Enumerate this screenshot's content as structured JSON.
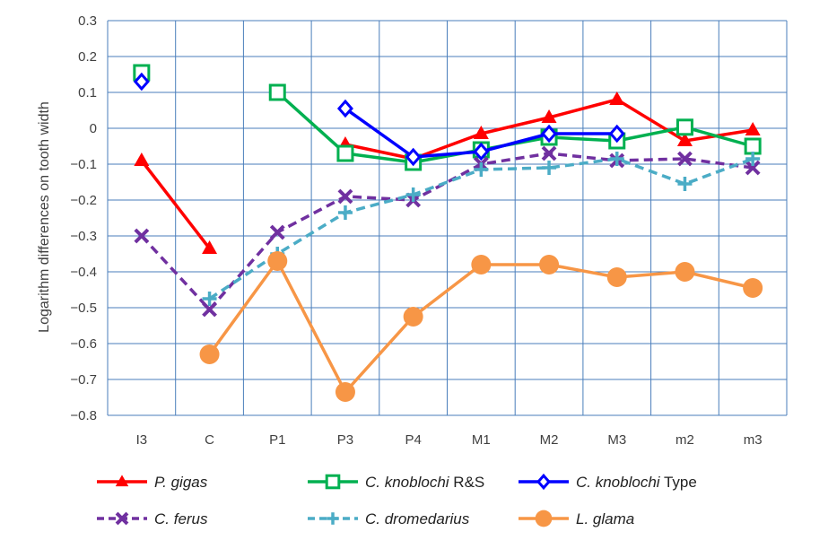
{
  "chart_data": {
    "type": "line",
    "title": "",
    "xlabel": "",
    "ylabel": "Logarithm differences on tooth width",
    "ylim": [
      -0.8,
      0.3
    ],
    "ytick_step": 0.1,
    "grid": true,
    "legend_position": "bottom",
    "categories": [
      "I3",
      "C",
      "P1",
      "P3",
      "P4",
      "M1",
      "M2",
      "M3",
      "m2",
      "m3"
    ],
    "series": [
      {
        "name_parts": [
          {
            "text": "P. gigas",
            "italic": true
          }
        ],
        "color": "#ff0000",
        "dash": "solid",
        "marker": "triangle",
        "values": [
          -0.09,
          -0.335,
          null,
          -0.045,
          -0.085,
          -0.015,
          0.03,
          0.08,
          -0.035,
          -0.005
        ]
      },
      {
        "name_parts": [
          {
            "text": "C. knoblochi",
            "italic": true
          },
          {
            "text": " R&S",
            "italic": false
          }
        ],
        "color": "#00b050",
        "dash": "solid",
        "marker": "square",
        "values": [
          0.155,
          null,
          0.1,
          -0.07,
          -0.095,
          -0.06,
          -0.025,
          -0.035,
          0.003,
          -0.05
        ]
      },
      {
        "name_parts": [
          {
            "text": "C. knoblochi",
            "italic": true
          },
          {
            "text": " Type",
            "italic": false
          }
        ],
        "color": "#0000ff",
        "dash": "solid",
        "marker": "diamond",
        "values": [
          0.13,
          null,
          null,
          0.055,
          -0.08,
          -0.065,
          -0.015,
          -0.015,
          null,
          null
        ]
      },
      {
        "name_parts": [
          {
            "text": "C. ferus",
            "italic": true
          }
        ],
        "color": "#7030a0",
        "dash": "dashed",
        "marker": "x",
        "values": [
          -0.3,
          -0.505,
          -0.29,
          -0.19,
          -0.2,
          -0.1,
          -0.07,
          -0.09,
          -0.085,
          -0.11
        ]
      },
      {
        "name_parts": [
          {
            "text": "C. dromedarius",
            "italic": true
          }
        ],
        "color": "#4bacc6",
        "dash": "dashed",
        "marker": "plus",
        "values": [
          null,
          -0.475,
          -0.35,
          -0.235,
          -0.185,
          -0.115,
          -0.11,
          -0.085,
          -0.155,
          -0.085
        ]
      },
      {
        "name_parts": [
          {
            "text": "L. glama",
            "italic": true
          }
        ],
        "color": "#f79646",
        "dash": "solid",
        "marker": "circle",
        "values": [
          null,
          -0.63,
          -0.37,
          -0.735,
          -0.525,
          -0.38,
          -0.38,
          -0.415,
          -0.4,
          -0.445
        ]
      }
    ]
  }
}
